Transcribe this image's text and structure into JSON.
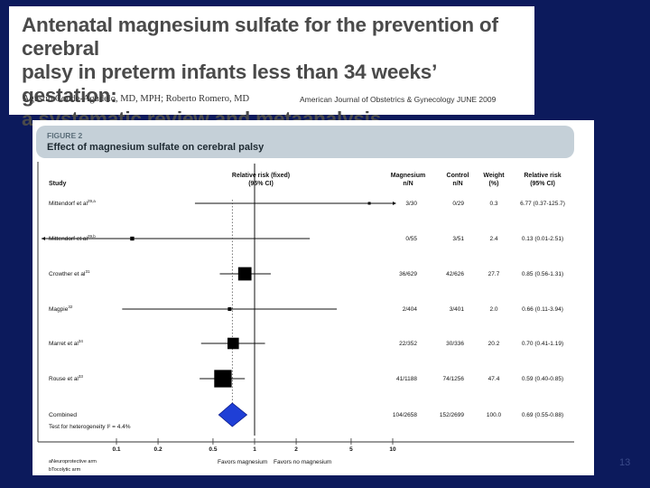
{
  "header": {
    "title_lines": [
      "Antenatal magnesium sulfate for the prevention of cerebral",
      "palsy in preterm infants less than 34 weeks’ gestation:",
      "a systematic review and metaanalysis"
    ],
    "authors": "Agustin Conde-Agudelo, MD, MPH; Roberto Romero, MD",
    "journal": "American Journal of Obstetrics & Gynecology  JUNE 2009"
  },
  "figure": {
    "label": "FIGURE 2",
    "title": "Effect of magnesium sulfate on cerebral palsy"
  },
  "slide_number": "13",
  "chart_data": {
    "type": "forest",
    "columns": {
      "study": "Study",
      "rr_line1": "Relative risk (fixed)",
      "rr_line2": "(95% CI)",
      "mag_line1": "Magnesium",
      "mag_line2": "n/N",
      "ctrl_line1": "Control",
      "ctrl_line2": "n/N",
      "weight_line1": "Weight",
      "weight_line2": "(%)",
      "rr2_line1": "Relative risk",
      "rr2_line2": "(95% CI)"
    },
    "x_axis": {
      "scale": "log",
      "range": [
        0.1,
        10
      ],
      "ticks": [
        0.1,
        0.2,
        0.5,
        1,
        2,
        5,
        10
      ],
      "tick_labels": [
        "0.1",
        "0.2",
        "0.5",
        "1",
        "2",
        "5",
        "10"
      ],
      "left_label": "Favors magnesium",
      "right_label": "Favors no magnesium"
    },
    "studies": [
      {
        "name": "Mittendorf et al",
        "sup": "29,a",
        "mag": "3/30",
        "ctrl": "0/29",
        "weight": "0.3",
        "rr_text": "6.77 (0.37-125.7)",
        "rr": 6.77,
        "lo": 0.37,
        "hi": 125.7
      },
      {
        "name": "Mittendorf et al",
        "sup": "29,b",
        "mag": "0/55",
        "ctrl": "3/51",
        "weight": "2.4",
        "rr_text": "0.13 (0.01-2.51)",
        "rr": 0.13,
        "lo": 0.01,
        "hi": 2.51
      },
      {
        "name": "Crowther et al",
        "sup": "31",
        "mag": "36/629",
        "ctrl": "42/626",
        "weight": "27.7",
        "rr_text": "0.85 (0.56-1.31)",
        "rr": 0.85,
        "lo": 0.56,
        "hi": 1.31
      },
      {
        "name": "Magpie",
        "sup": "32",
        "mag": "2/404",
        "ctrl": "3/401",
        "weight": "2.0",
        "rr_text": "0.66 (0.11-3.94)",
        "rr": 0.66,
        "lo": 0.11,
        "hi": 3.94
      },
      {
        "name": "Marret et al",
        "sup": "34",
        "mag": "22/352",
        "ctrl": "30/336",
        "weight": "20.2",
        "rr_text": "0.70 (0.41-1.19)",
        "rr": 0.7,
        "lo": 0.41,
        "hi": 1.19
      },
      {
        "name": "Rouse et al",
        "sup": "33",
        "mag": "41/1188",
        "ctrl": "74/1256",
        "weight": "47.4",
        "rr_text": "0.59 (0.40-0.85)",
        "rr": 0.59,
        "lo": 0.4,
        "hi": 0.85
      }
    ],
    "combined": {
      "name": "Combined",
      "mag": "104/2658",
      "ctrl": "152/2699",
      "weight": "100.0",
      "rr_text": "0.69 (0.55-0.88)",
      "rr": 0.69,
      "lo": 0.55,
      "hi": 0.88,
      "color": "#1f3fd6"
    },
    "heterogeneity": "Test for heterogeneity I² = 4.4%",
    "footnotes": [
      "aNeuroprotective arm",
      "bTocolytic arm"
    ]
  }
}
